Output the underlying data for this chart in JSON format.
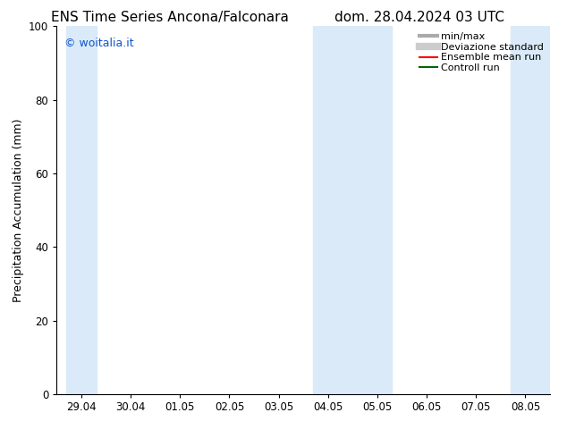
{
  "title_left": "ENS Time Series Ancona/Falconara",
  "title_right": "dom. 28.04.2024 03 UTC",
  "ylabel": "Precipitation Accumulation (mm)",
  "watermark": "© woitalia.it",
  "watermark_color": "#1155cc",
  "ylim": [
    0,
    100
  ],
  "yticks": [
    0,
    20,
    40,
    60,
    80,
    100
  ],
  "x_labels": [
    "29.04",
    "30.04",
    "01.05",
    "02.05",
    "03.05",
    "04.05",
    "05.05",
    "06.05",
    "07.05",
    "08.05"
  ],
  "x_positions": [
    0,
    1,
    2,
    3,
    4,
    5,
    6,
    7,
    8,
    9
  ],
  "shaded_bands": [
    {
      "xmin": -0.3,
      "xmax": 0.3
    },
    {
      "xmin": 4.7,
      "xmax": 6.3
    },
    {
      "xmin": 8.7,
      "xmax": 9.5
    }
  ],
  "band_color": "#daeaf8",
  "background_color": "#ffffff",
  "legend_items": [
    {
      "label": "min/max",
      "color": "#aaaaaa",
      "lw": 3,
      "type": "line"
    },
    {
      "label": "Deviazione standard",
      "color": "#cccccc",
      "lw": 6,
      "type": "line"
    },
    {
      "label": "Ensemble mean run",
      "color": "#ff0000",
      "lw": 1.5,
      "type": "line"
    },
    {
      "label": "Controll run",
      "color": "#006600",
      "lw": 1.5,
      "type": "line"
    }
  ],
  "title_fontsize": 11,
  "axis_fontsize": 9,
  "tick_fontsize": 8.5,
  "watermark_fontsize": 9,
  "legend_fontsize": 8
}
